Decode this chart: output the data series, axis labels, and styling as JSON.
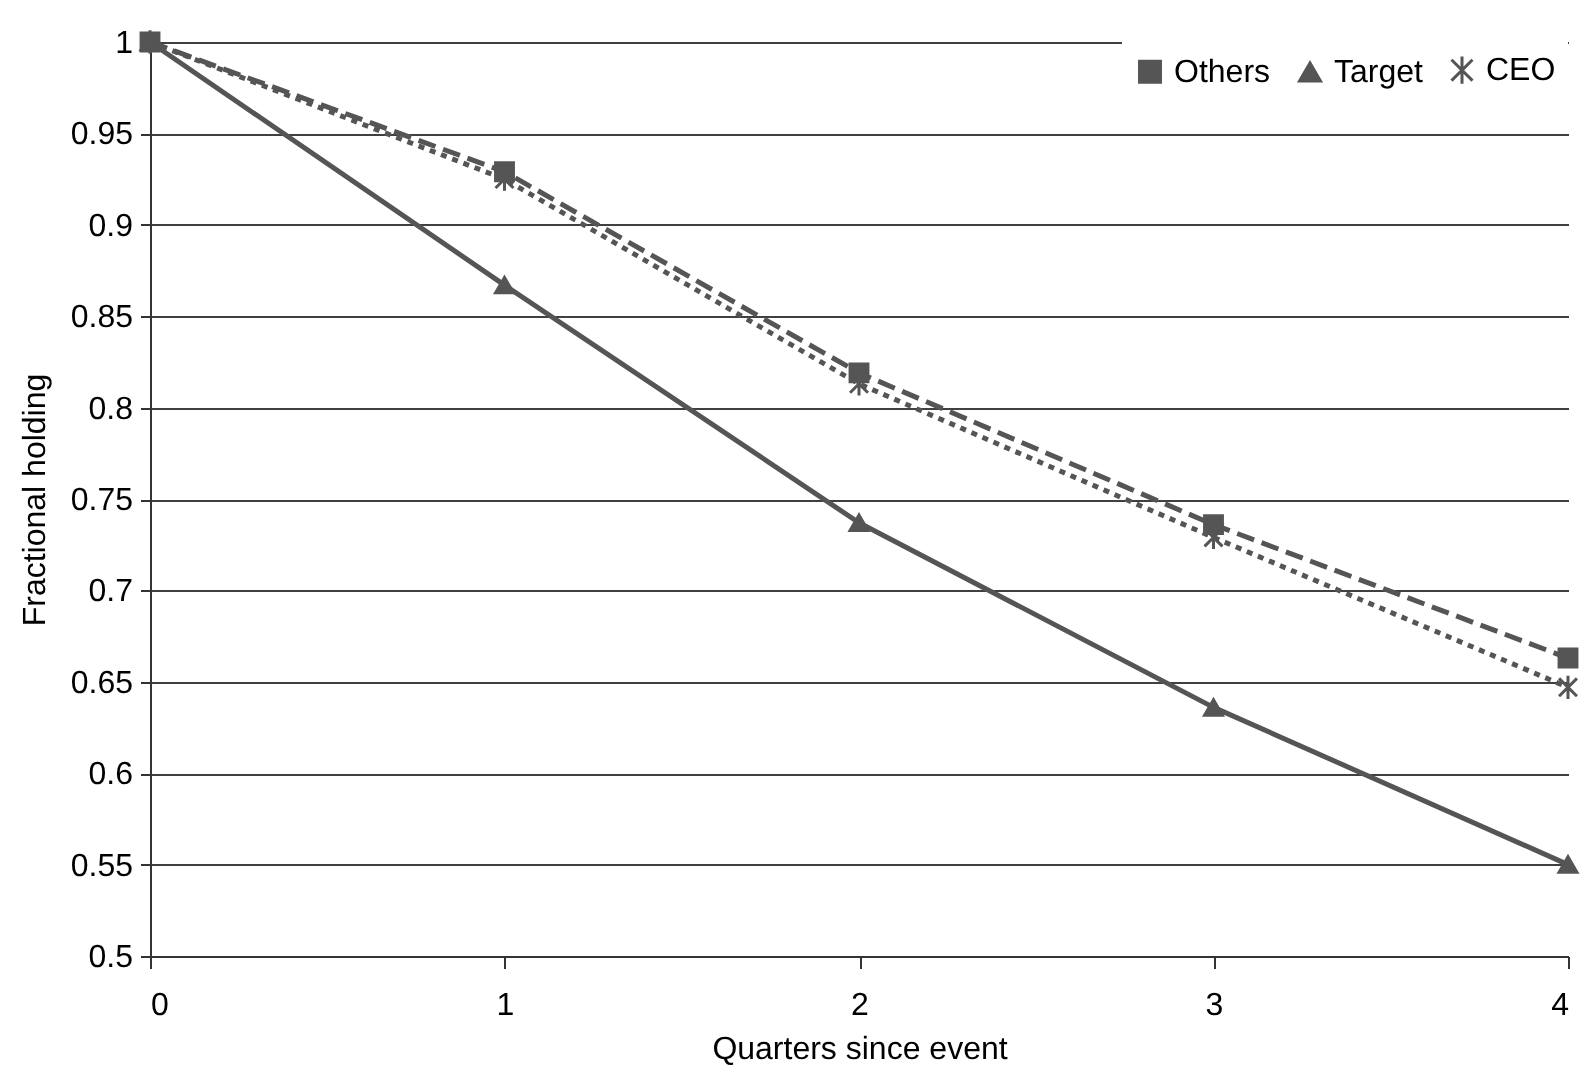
{
  "chart_data": {
    "type": "line",
    "xlabel": "Quarters since event",
    "ylabel": "Fractional holding",
    "x": [
      0,
      1,
      2,
      3,
      4
    ],
    "xlim": [
      0,
      4
    ],
    "xticks": [
      0,
      1,
      2,
      3,
      4
    ],
    "ylim": [
      0.5,
      1
    ],
    "yticks": [
      0.5,
      0.55,
      0.6,
      0.65,
      0.7,
      0.75,
      0.8,
      0.85,
      0.9,
      0.95,
      1
    ],
    "grid": "y",
    "legend": "top right",
    "series": [
      {
        "name": "Others",
        "color": "#555555",
        "marker": "square",
        "line_style": "dashed",
        "values": [
          1,
          0.929,
          0.819,
          0.736,
          0.663
        ]
      },
      {
        "name": "Target",
        "color": "#555555",
        "marker": "triangle",
        "line_style": "solid",
        "values": [
          1,
          0.867,
          0.737,
          0.636,
          0.55
        ]
      },
      {
        "name": "CEO",
        "color": "#555555",
        "marker": "cross",
        "line_style": "dotted",
        "values": [
          1,
          0.925,
          0.813,
          0.729,
          0.647
        ]
      }
    ]
  }
}
